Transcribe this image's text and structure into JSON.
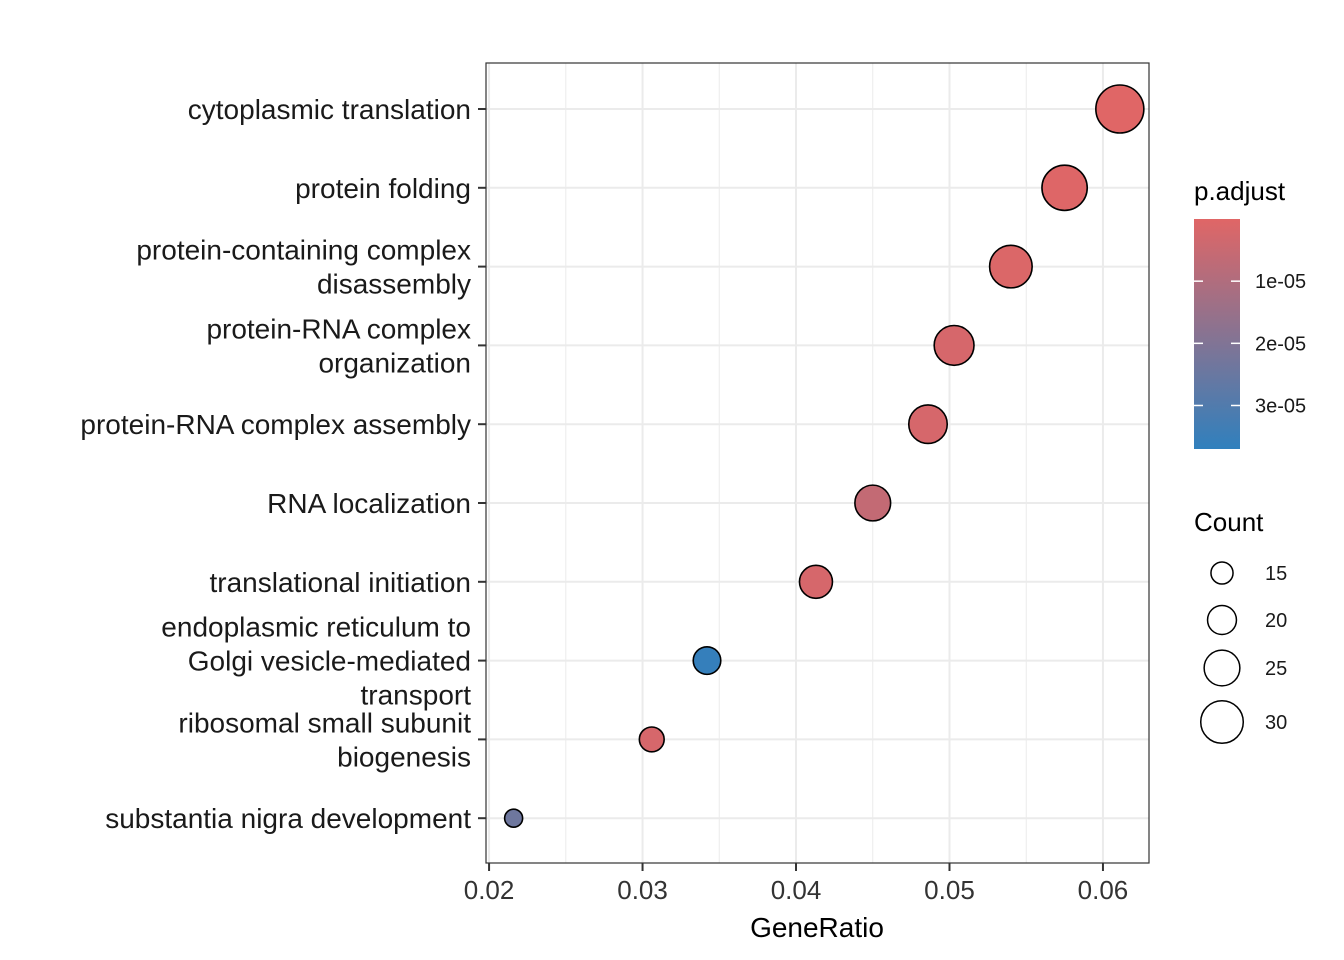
{
  "chart_data": {
    "type": "scatter",
    "subtype": "dotplot",
    "title": "",
    "xlabel": "GeneRatio",
    "ylabel": "",
    "xlim": [
      0.0198,
      0.063
    ],
    "xticks": [
      0.02,
      0.03,
      0.04,
      0.05,
      0.06
    ],
    "xtick_labels": [
      "0.02",
      "0.03",
      "0.04",
      "0.05",
      "0.06"
    ],
    "grid": true,
    "categories": [
      [
        "cytoplasmic translation"
      ],
      [
        "protein folding"
      ],
      [
        "protein-containing complex",
        "disassembly"
      ],
      [
        "protein-RNA complex",
        "organization"
      ],
      [
        "protein-RNA complex assembly"
      ],
      [
        "RNA localization"
      ],
      [
        "translational initiation"
      ],
      [
        "endoplasmic reticulum to",
        "Golgi vesicle-mediated",
        "transport"
      ],
      [
        "ribosomal small subunit",
        "biogenesis"
      ],
      [
        "substantia nigra development"
      ]
    ],
    "points": [
      {
        "term": "cytoplasmic translation",
        "gene_ratio": 0.0611,
        "count": 34,
        "p_adjust": 1e-07
      },
      {
        "term": "protein folding",
        "gene_ratio": 0.0575,
        "count": 32,
        "p_adjust": 5e-07
      },
      {
        "term": "protein-containing complex disassembly",
        "gene_ratio": 0.054,
        "count": 30,
        "p_adjust": 1e-06
      },
      {
        "term": "protein-RNA complex organization",
        "gene_ratio": 0.0503,
        "count": 28,
        "p_adjust": 2e-06
      },
      {
        "term": "protein-RNA complex assembly",
        "gene_ratio": 0.0486,
        "count": 27,
        "p_adjust": 2e-06
      },
      {
        "term": "RNA localization",
        "gene_ratio": 0.045,
        "count": 25,
        "p_adjust": 6e-06
      },
      {
        "term": "translational initiation",
        "gene_ratio": 0.0413,
        "count": 23,
        "p_adjust": 2e-06
      },
      {
        "term": "endoplasmic reticulum to Golgi vesicle-mediated transport",
        "gene_ratio": 0.0342,
        "count": 19,
        "p_adjust": 3.6e-05
      },
      {
        "term": "ribosomal small subunit biogenesis",
        "gene_ratio": 0.0306,
        "count": 17,
        "p_adjust": 2e-06
      },
      {
        "term": "substantia nigra development",
        "gene_ratio": 0.0216,
        "count": 12,
        "p_adjust": 2.4e-05
      }
    ],
    "color_legend": {
      "title": "p.adjust",
      "range": [
        0,
        3.7e-05
      ],
      "low_color": "#e06666",
      "high_color": "#3080bd",
      "ticks": [
        1e-05,
        2e-05,
        3e-05
      ],
      "tick_labels": [
        "1e-05",
        "2e-05",
        "3e-05"
      ]
    },
    "size_legend": {
      "title": "Count",
      "values": [
        15,
        20,
        25,
        30
      ],
      "labels": [
        "15",
        "20",
        "25",
        "30"
      ],
      "count_range": [
        12,
        34
      ]
    }
  }
}
